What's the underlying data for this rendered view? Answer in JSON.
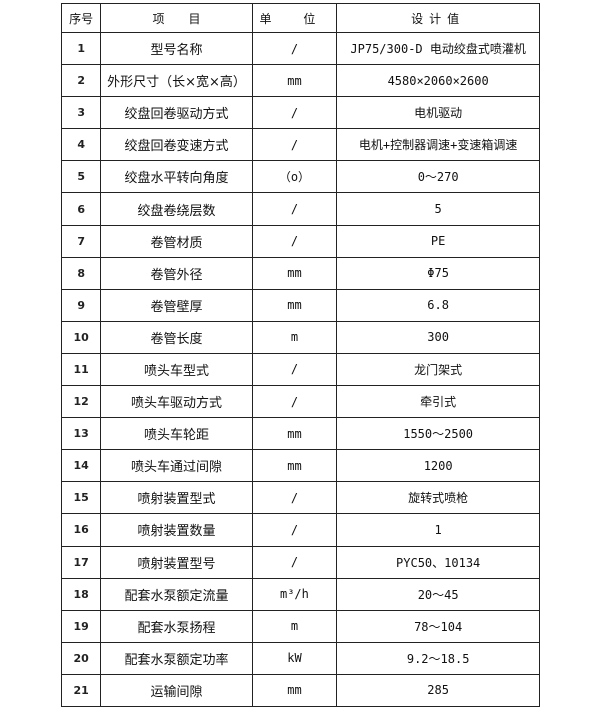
{
  "header": {
    "no": "序号",
    "item": "项　　目",
    "unit": "单 位",
    "value": "设计值"
  },
  "rows": [
    {
      "no": "1",
      "item": "型号名称",
      "unit": "/",
      "value": "JP75/300-D 电动绞盘式喷灌机"
    },
    {
      "no": "2",
      "item": "外形尺寸（长×宽×高）",
      "unit": "mm",
      "value": "4580×2060×2600"
    },
    {
      "no": "3",
      "item": "绞盘回卷驱动方式",
      "unit": "/",
      "value": "电机驱动"
    },
    {
      "no": "4",
      "item": "绞盘回卷变速方式",
      "unit": "/",
      "value": "电机+控制器调速+变速箱调速"
    },
    {
      "no": "5",
      "item": "绞盘水平转向角度",
      "unit": "（o）",
      "value": "0～270"
    },
    {
      "no": "6",
      "item": "绞盘卷绕层数",
      "unit": "/",
      "value": "5"
    },
    {
      "no": "7",
      "item": "卷管材质",
      "unit": "/",
      "value": "PE"
    },
    {
      "no": "8",
      "item": "卷管外径",
      "unit": "mm",
      "value": "Φ75"
    },
    {
      "no": "9",
      "item": "卷管壁厚",
      "unit": "mm",
      "value": "6.8"
    },
    {
      "no": "10",
      "item": "卷管长度",
      "unit": "m",
      "value": "300"
    },
    {
      "no": "11",
      "item": "喷头车型式",
      "unit": "/",
      "value": "龙门架式"
    },
    {
      "no": "12",
      "item": "喷头车驱动方式",
      "unit": "/",
      "value": "牵引式"
    },
    {
      "no": "13",
      "item": "喷头车轮距",
      "unit": "mm",
      "value": "1550～2500"
    },
    {
      "no": "14",
      "item": "喷头车通过间隙",
      "unit": "mm",
      "value": "1200"
    },
    {
      "no": "15",
      "item": "喷射装置型式",
      "unit": "/",
      "value": "旋转式喷枪"
    },
    {
      "no": "16",
      "item": "喷射装置数量",
      "unit": "/",
      "value": "1"
    },
    {
      "no": "17",
      "item": "喷射装置型号",
      "unit": "/",
      "value": "PYC50、10134"
    },
    {
      "no": "18",
      "item": "配套水泵额定流量",
      "unit": "m³/h",
      "value": "20～45"
    },
    {
      "no": "19",
      "item": "配套水泵扬程",
      "unit": "m",
      "value": "78～104"
    },
    {
      "no": "20",
      "item": "配套水泵额定功率",
      "unit": "kW",
      "value": "9.2～18.5"
    },
    {
      "no": "21",
      "item": "运输间隙",
      "unit": "mm",
      "value": "285"
    }
  ]
}
